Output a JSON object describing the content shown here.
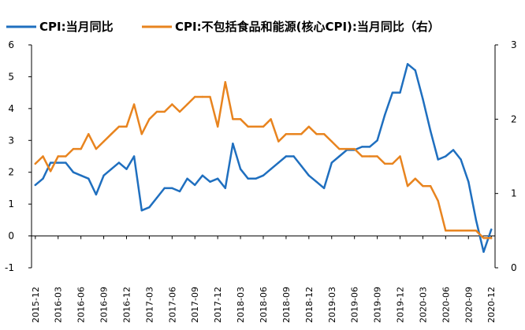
{
  "chart_data": {
    "type": "line",
    "legend_position": "top",
    "grid": false,
    "x": [
      "2015-12",
      "2016-01",
      "2016-02",
      "2016-03",
      "2016-04",
      "2016-05",
      "2016-06",
      "2016-07",
      "2016-08",
      "2016-09",
      "2016-10",
      "2016-11",
      "2016-12",
      "2017-01",
      "2017-02",
      "2017-03",
      "2017-04",
      "2017-05",
      "2017-06",
      "2017-07",
      "2017-08",
      "2017-09",
      "2017-10",
      "2017-11",
      "2017-12",
      "2018-01",
      "2018-02",
      "2018-03",
      "2018-04",
      "2018-05",
      "2018-06",
      "2018-07",
      "2018-08",
      "2018-09",
      "2018-10",
      "2018-11",
      "2018-12",
      "2019-01",
      "2019-02",
      "2019-03",
      "2019-04",
      "2019-05",
      "2019-06",
      "2019-07",
      "2019-08",
      "2019-09",
      "2019-10",
      "2019-11",
      "2019-12",
      "2020-01",
      "2020-02",
      "2020-03",
      "2020-04",
      "2020-05",
      "2020-06",
      "2020-07",
      "2020-08",
      "2020-09",
      "2020-10",
      "2020-11",
      "2020-12"
    ],
    "x_tick_labels": [
      "2015-12",
      "2016-03",
      "2016-06",
      "2016-09",
      "2016-12",
      "2017-03",
      "2017-06",
      "2017-09",
      "2017-12",
      "2018-03",
      "2018-06",
      "2018-09",
      "2018-12",
      "2019-03",
      "2019-06",
      "2019-09",
      "2019-12",
      "2020-03",
      "2020-06",
      "2020-09",
      "2020-12"
    ],
    "y_left": {
      "lim": [
        -1,
        6
      ],
      "ticks": [
        "-1",
        "0",
        "1",
        "2",
        "3",
        "4",
        "5",
        "6"
      ]
    },
    "y_right": {
      "lim": [
        0,
        3
      ],
      "ticks": [
        "0",
        "1",
        "2",
        "3"
      ]
    },
    "series": [
      {
        "name": "CPI:当月同比",
        "color": "#1f6fbf",
        "axis": "left",
        "values": [
          1.6,
          1.8,
          2.3,
          2.3,
          2.3,
          2.0,
          1.9,
          1.8,
          1.3,
          1.9,
          2.1,
          2.3,
          2.1,
          2.5,
          0.8,
          0.9,
          1.2,
          1.5,
          1.5,
          1.4,
          1.8,
          1.6,
          1.9,
          1.7,
          1.8,
          1.5,
          2.9,
          2.1,
          1.8,
          1.8,
          1.9,
          2.1,
          2.3,
          2.5,
          2.5,
          2.2,
          1.9,
          1.7,
          1.5,
          2.3,
          2.5,
          2.7,
          2.7,
          2.8,
          2.8,
          3.0,
          3.8,
          4.5,
          4.5,
          5.4,
          5.2,
          4.3,
          3.3,
          2.4,
          2.5,
          2.7,
          2.4,
          1.7,
          0.5,
          -0.5,
          0.2
        ]
      },
      {
        "name": "CPI:不包括食品和能源(核心CPI):当月同比（右）",
        "color": "#e8841f",
        "axis": "right",
        "values": [
          1.4,
          1.5,
          1.3,
          1.5,
          1.5,
          1.6,
          1.6,
          1.8,
          1.6,
          1.7,
          1.8,
          1.9,
          1.9,
          2.2,
          1.8,
          2.0,
          2.1,
          2.1,
          2.2,
          2.1,
          2.2,
          2.3,
          2.3,
          2.3,
          1.9,
          2.5,
          2.0,
          2.0,
          1.9,
          1.9,
          1.9,
          2.0,
          1.7,
          1.8,
          1.8,
          1.8,
          1.9,
          1.8,
          1.8,
          1.7,
          1.6,
          1.6,
          1.6,
          1.5,
          1.5,
          1.5,
          1.4,
          1.4,
          1.5,
          1.1,
          1.2,
          1.1,
          1.1,
          0.9,
          0.5,
          0.5,
          0.5,
          0.5,
          0.5,
          0.4,
          0.4
        ]
      }
    ]
  }
}
